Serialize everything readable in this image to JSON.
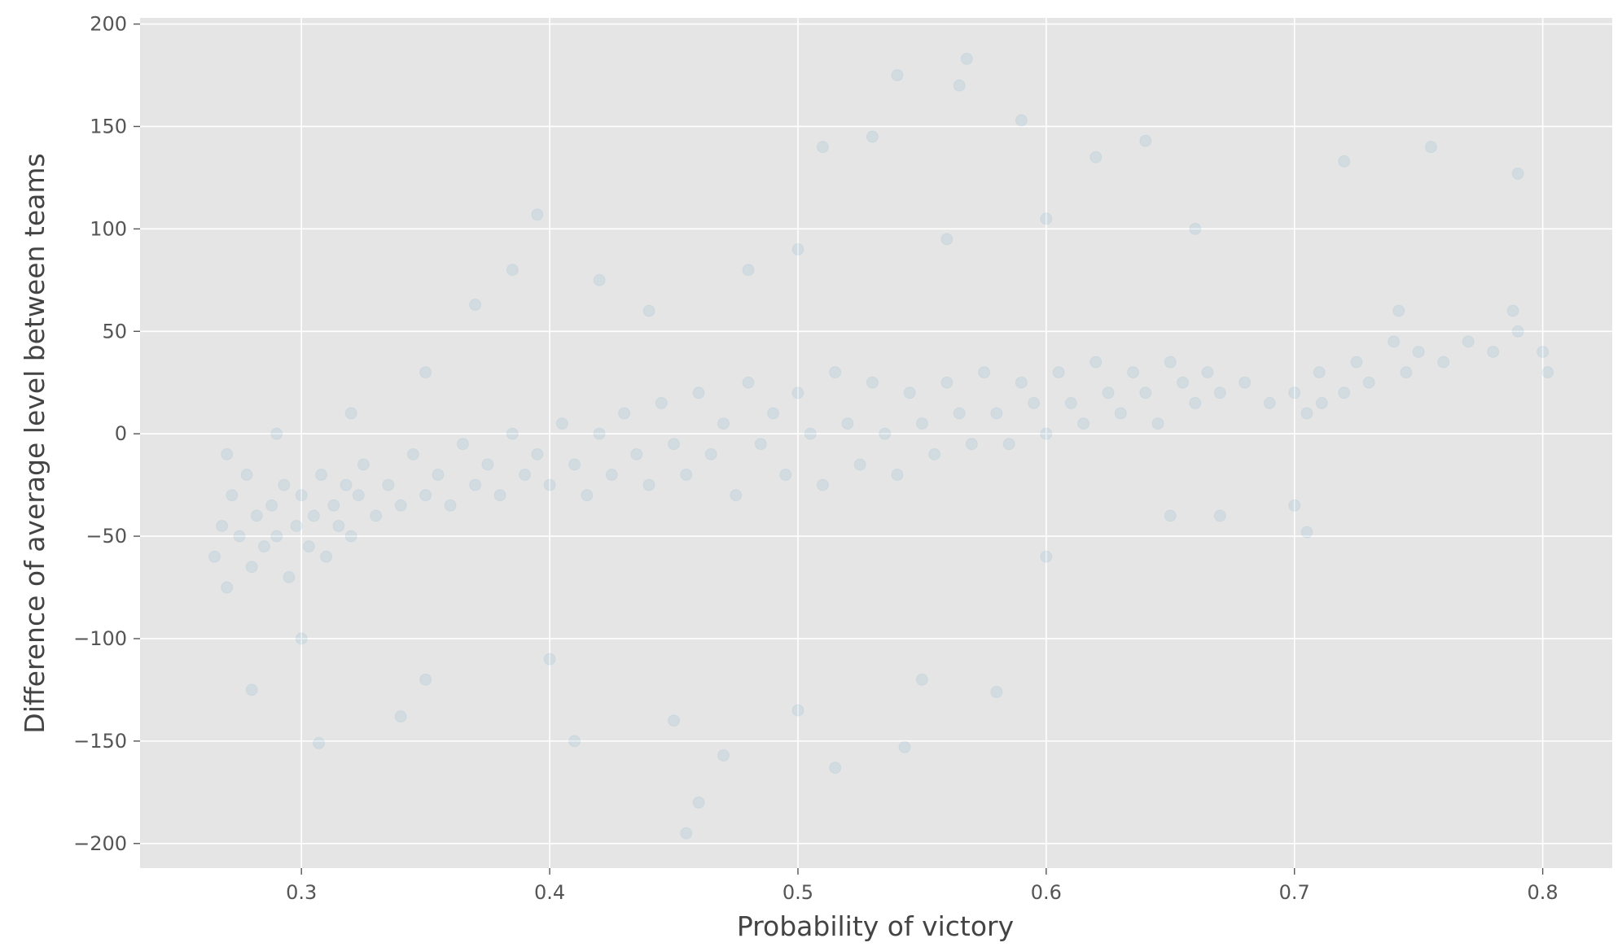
{
  "chart_data": {
    "type": "scatter",
    "title": "",
    "xlabel": "Probability of victory",
    "ylabel": "Difference of average level between teams",
    "xlim": [
      0.235,
      0.828
    ],
    "ylim": [
      -212,
      203
    ],
    "x_ticks": [
      {
        "value": 0.3,
        "label": "0.3"
      },
      {
        "value": 0.4,
        "label": "0.4"
      },
      {
        "value": 0.5,
        "label": "0.5"
      },
      {
        "value": 0.6,
        "label": "0.6"
      },
      {
        "value": 0.7,
        "label": "0.7"
      },
      {
        "value": 0.8,
        "label": "0.8"
      }
    ],
    "y_ticks": [
      {
        "value": 200,
        "label": "200"
      },
      {
        "value": 150,
        "label": "150"
      },
      {
        "value": 100,
        "label": "100"
      },
      {
        "value": 50,
        "label": "50"
      },
      {
        "value": 0,
        "label": "0"
      },
      {
        "value": -50,
        "label": "−50"
      },
      {
        "value": -100,
        "label": "−100"
      },
      {
        "value": -150,
        "label": "−150"
      },
      {
        "value": -200,
        "label": "−200"
      }
    ],
    "grid": true,
    "legend": "none",
    "colors": {
      "marker": "#348abd",
      "background": "#e5e5e5",
      "grid": "#ffffff"
    },
    "marker_alpha": 0.1,
    "series": [
      {
        "points": [
          [
            0.265,
            -60
          ],
          [
            0.268,
            -45
          ],
          [
            0.27,
            -75
          ],
          [
            0.272,
            -30
          ],
          [
            0.275,
            -50
          ],
          [
            0.278,
            -20
          ],
          [
            0.28,
            -65
          ],
          [
            0.282,
            -40
          ],
          [
            0.285,
            -55
          ],
          [
            0.288,
            -35
          ],
          [
            0.29,
            -50
          ],
          [
            0.293,
            -25
          ],
          [
            0.295,
            -70
          ],
          [
            0.298,
            -45
          ],
          [
            0.3,
            -30
          ],
          [
            0.303,
            -55
          ],
          [
            0.305,
            -40
          ],
          [
            0.308,
            -20
          ],
          [
            0.31,
            -60
          ],
          [
            0.313,
            -35
          ],
          [
            0.315,
            -45
          ],
          [
            0.318,
            -25
          ],
          [
            0.32,
            -50
          ],
          [
            0.323,
            -30
          ],
          [
            0.325,
            -15
          ],
          [
            0.33,
            -40
          ],
          [
            0.335,
            -25
          ],
          [
            0.34,
            -35
          ],
          [
            0.345,
            -10
          ],
          [
            0.35,
            -30
          ],
          [
            0.355,
            -20
          ],
          [
            0.36,
            -35
          ],
          [
            0.365,
            -5
          ],
          [
            0.37,
            -25
          ],
          [
            0.375,
            -15
          ],
          [
            0.38,
            -30
          ],
          [
            0.385,
            0
          ],
          [
            0.39,
            -20
          ],
          [
            0.395,
            -10
          ],
          [
            0.4,
            -25
          ],
          [
            0.405,
            5
          ],
          [
            0.41,
            -15
          ],
          [
            0.415,
            -30
          ],
          [
            0.42,
            0
          ],
          [
            0.425,
            -20
          ],
          [
            0.43,
            10
          ],
          [
            0.435,
            -10
          ],
          [
            0.44,
            -25
          ],
          [
            0.445,
            15
          ],
          [
            0.45,
            -5
          ],
          [
            0.455,
            -20
          ],
          [
            0.46,
            20
          ],
          [
            0.465,
            -10
          ],
          [
            0.47,
            5
          ],
          [
            0.475,
            -30
          ],
          [
            0.48,
            25
          ],
          [
            0.485,
            -5
          ],
          [
            0.49,
            10
          ],
          [
            0.495,
            -20
          ],
          [
            0.5,
            20
          ],
          [
            0.505,
            0
          ],
          [
            0.51,
            -25
          ],
          [
            0.515,
            30
          ],
          [
            0.52,
            5
          ],
          [
            0.525,
            -15
          ],
          [
            0.53,
            25
          ],
          [
            0.535,
            0
          ],
          [
            0.54,
            -20
          ],
          [
            0.545,
            20
          ],
          [
            0.55,
            5
          ],
          [
            0.555,
            -10
          ],
          [
            0.56,
            25
          ],
          [
            0.565,
            10
          ],
          [
            0.57,
            -5
          ],
          [
            0.575,
            30
          ],
          [
            0.58,
            10
          ],
          [
            0.585,
            -5
          ],
          [
            0.59,
            25
          ],
          [
            0.595,
            15
          ],
          [
            0.6,
            0
          ],
          [
            0.605,
            30
          ],
          [
            0.61,
            15
          ],
          [
            0.615,
            5
          ],
          [
            0.62,
            35
          ],
          [
            0.625,
            20
          ],
          [
            0.63,
            10
          ],
          [
            0.635,
            30
          ],
          [
            0.64,
            20
          ],
          [
            0.645,
            5
          ],
          [
            0.65,
            35
          ],
          [
            0.655,
            25
          ],
          [
            0.66,
            15
          ],
          [
            0.665,
            30
          ],
          [
            0.67,
            20
          ],
          [
            0.68,
            25
          ],
          [
            0.69,
            15
          ],
          [
            0.7,
            20
          ],
          [
            0.705,
            10
          ],
          [
            0.71,
            30
          ],
          [
            0.72,
            20
          ],
          [
            0.725,
            35
          ],
          [
            0.73,
            25
          ],
          [
            0.74,
            45
          ],
          [
            0.745,
            30
          ],
          [
            0.75,
            40
          ],
          [
            0.76,
            35
          ],
          [
            0.77,
            45
          ],
          [
            0.78,
            40
          ],
          [
            0.79,
            50
          ],
          [
            0.8,
            40
          ],
          [
            0.802,
            30
          ],
          [
            0.788,
            60
          ],
          [
            0.742,
            60
          ],
          [
            0.711,
            15
          ],
          [
            0.3,
            -100
          ],
          [
            0.35,
            -120
          ],
          [
            0.4,
            -110
          ],
          [
            0.45,
            -140
          ],
          [
            0.5,
            -135
          ],
          [
            0.55,
            -120
          ],
          [
            0.6,
            -60
          ],
          [
            0.65,
            -40
          ],
          [
            0.46,
            -180
          ],
          [
            0.455,
            -195
          ],
          [
            0.515,
            -163
          ],
          [
            0.307,
            -151
          ],
          [
            0.41,
            -150
          ],
          [
            0.54,
            175
          ],
          [
            0.568,
            183
          ],
          [
            0.565,
            170
          ],
          [
            0.51,
            140
          ],
          [
            0.53,
            145
          ],
          [
            0.59,
            153
          ],
          [
            0.62,
            135
          ],
          [
            0.64,
            143
          ],
          [
            0.72,
            133
          ],
          [
            0.755,
            140
          ],
          [
            0.79,
            127
          ],
          [
            0.395,
            107
          ],
          [
            0.385,
            80
          ],
          [
            0.37,
            63
          ],
          [
            0.58,
            -126
          ],
          [
            0.543,
            -153
          ],
          [
            0.47,
            -157
          ],
          [
            0.34,
            -138
          ],
          [
            0.28,
            -125
          ],
          [
            0.67,
            -40
          ],
          [
            0.7,
            -35
          ],
          [
            0.705,
            -48
          ],
          [
            0.5,
            90
          ],
          [
            0.48,
            80
          ],
          [
            0.56,
            95
          ],
          [
            0.6,
            105
          ],
          [
            0.44,
            60
          ],
          [
            0.42,
            75
          ],
          [
            0.66,
            100
          ],
          [
            0.35,
            30
          ],
          [
            0.32,
            10
          ],
          [
            0.29,
            0
          ],
          [
            0.27,
            -10
          ]
        ]
      }
    ]
  }
}
